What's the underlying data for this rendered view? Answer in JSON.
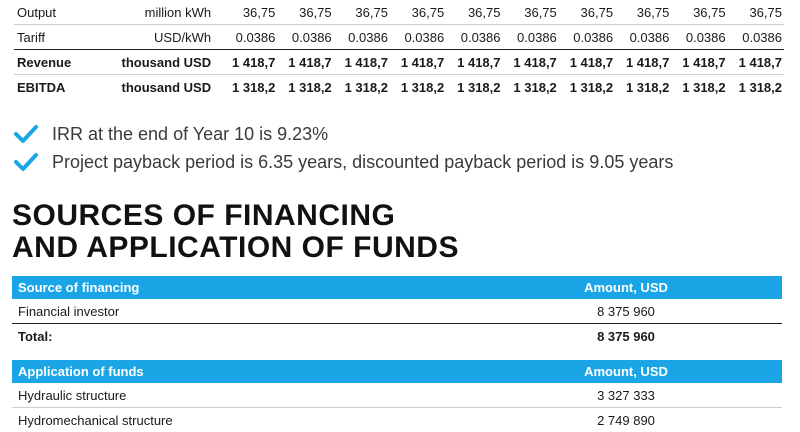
{
  "performance": {
    "rows": [
      {
        "label": "Output",
        "unit": "million kWh",
        "values": [
          "36,75",
          "36,75",
          "36,75",
          "36,75",
          "36,75",
          "36,75",
          "36,75",
          "36,75",
          "36,75",
          "36,75"
        ]
      },
      {
        "label": "Tariff",
        "unit": "USD/kWh",
        "values": [
          "0.0386",
          "0.0386",
          "0.0386",
          "0.0386",
          "0.0386",
          "0.0386",
          "0.0386",
          "0.0386",
          "0.0386",
          "0.0386"
        ]
      },
      {
        "label": "Revenue",
        "unit": "thousand USD",
        "values": [
          "1 418,7",
          "1 418,7",
          "1 418,7",
          "1 418,7",
          "1 418,7",
          "1 418,7",
          "1 418,7",
          "1 418,7",
          "1 418,7",
          "1 418,7"
        ]
      },
      {
        "label": "EBITDA",
        "unit": "thousand USD",
        "values": [
          "1 318,2",
          "1 318,2",
          "1 318,2",
          "1 318,2",
          "1 318,2",
          "1 318,2",
          "1 318,2",
          "1 318,2",
          "1 318,2",
          "1 318,2"
        ]
      }
    ]
  },
  "bullets": [
    "IRR at the end of Year 10 is 9.23%",
    "Project payback period is 6.35 years, discounted payback period is 9.05 years"
  ],
  "heading": {
    "line1": "SOURCES OF FINANCING",
    "line2": "AND APPLICATION OF FUNDS"
  },
  "sources": {
    "header": {
      "name": "Source of financing",
      "amount": "Amount, USD"
    },
    "rows": [
      {
        "name": "Financial investor",
        "amount": "8 375 960"
      }
    ],
    "total": {
      "name": "Total:",
      "amount": "8 375 960"
    }
  },
  "applications": {
    "header": {
      "name": "Application of funds",
      "amount": "Amount, USD"
    },
    "rows": [
      {
        "name": "Hydraulic structure",
        "amount": "3 327 333"
      },
      {
        "name": "Hydromechanical structure",
        "amount": "2 749 890"
      }
    ]
  },
  "colors": {
    "accent": "#1aa6e6",
    "check": "#1aa6e6"
  }
}
